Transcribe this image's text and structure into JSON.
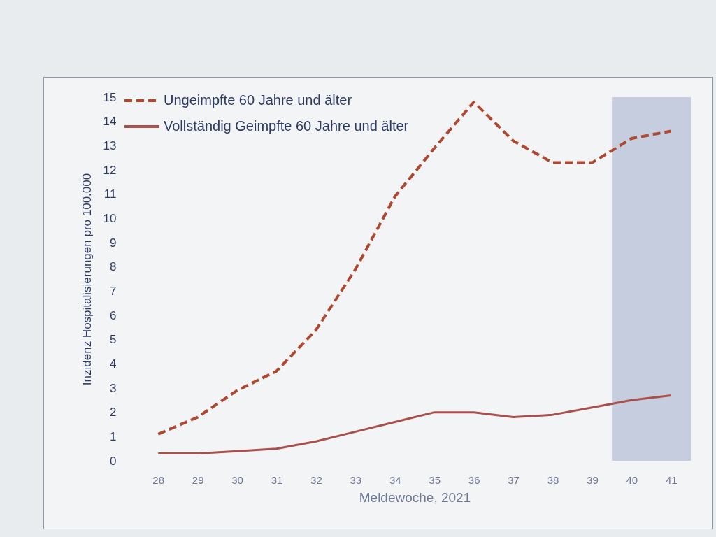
{
  "chart_data": {
    "type": "line",
    "xlabel": "Meldewoche, 2021",
    "ylabel": "Inzidenz Hospitalisierungen pro 100.000",
    "categories": [
      "28",
      "29",
      "30",
      "31",
      "32",
      "33",
      "34",
      "35",
      "36",
      "37",
      "38",
      "39",
      "40",
      "41"
    ],
    "series": [
      {
        "name": "Ungeimpfte 60 Jahre und älter",
        "color": "#b0472f",
        "line_style": "dashed",
        "values": [
          1.1,
          1.8,
          2.9,
          3.7,
          5.4,
          7.9,
          10.9,
          12.9,
          14.8,
          13.2,
          12.3,
          12.3,
          13.3,
          13.6
        ]
      },
      {
        "name": "Vollständig Geimpfte 60 Jahre und älter",
        "color": "#a8504c",
        "line_style": "solid",
        "values": [
          0.3,
          0.3,
          0.4,
          0.5,
          0.8,
          1.2,
          1.6,
          2.0,
          2.0,
          1.8,
          1.9,
          2.2,
          2.5,
          2.7
        ]
      }
    ],
    "ylim": [
      0,
      15
    ],
    "yticks": [
      0,
      1,
      2,
      3,
      4,
      5,
      6,
      7,
      8,
      9,
      10,
      11,
      12,
      13,
      14,
      15
    ],
    "bands": [
      {
        "axis": "x",
        "from": "40",
        "to": "41",
        "color": "#bcc6db"
      }
    ],
    "grid": false,
    "legend": "top left",
    "marker": "none"
  }
}
